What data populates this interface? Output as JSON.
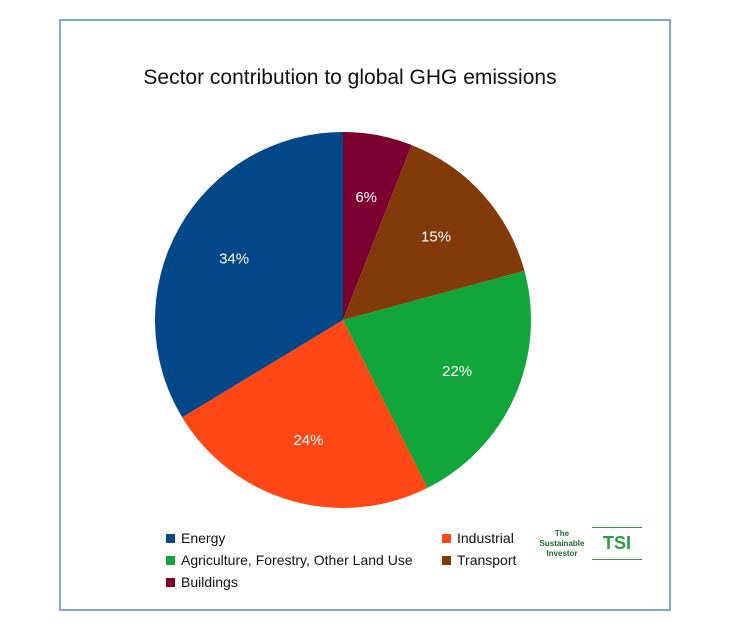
{
  "chart_data": {
    "type": "pie",
    "title": "Sector contribution to global GHG emissions",
    "start_angle_deg": 0,
    "direction": "clockwise",
    "slices": [
      {
        "name": "Buildings",
        "value": 6,
        "label": "6%",
        "color": "#7b0030"
      },
      {
        "name": "Transport",
        "value": 15,
        "label": "15%",
        "color": "#823a0b"
      },
      {
        "name": "Agriculture, Forestry, Other Land Use",
        "value": 22,
        "label": "22%",
        "color": "#12a539"
      },
      {
        "name": "Industrial",
        "value": 24,
        "label": "24%",
        "color": "#ff4816"
      },
      {
        "name": "Energy",
        "value": 34,
        "label": "34%",
        "color": "#024888"
      }
    ],
    "legend": {
      "placement": "bottom",
      "order": [
        "Energy",
        "Industrial",
        "Agriculture, Forestry, Other Land Use",
        "Transport",
        "Buildings"
      ]
    }
  },
  "logo": {
    "words": [
      "The",
      "Sustainable",
      "Investor"
    ],
    "mark": "TSI"
  }
}
